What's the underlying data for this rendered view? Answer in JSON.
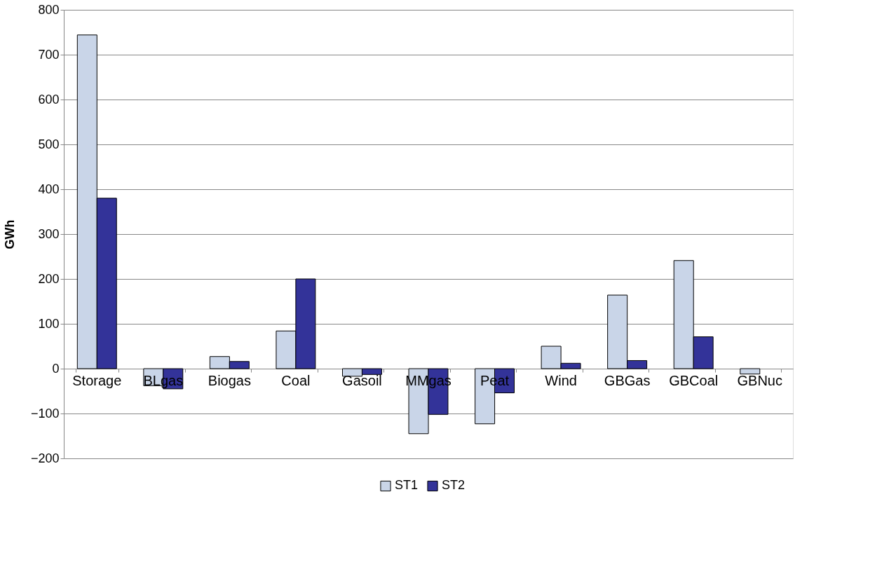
{
  "chart_data": {
    "type": "bar",
    "ylabel": "GWh",
    "categories": [
      "Storage",
      "BLgas",
      "Biogas",
      "Coal",
      "Gasoil",
      "MMgas",
      "Peat",
      "Wind",
      "GBGas",
      "GBCoal",
      "GBNuc"
    ],
    "series": [
      {
        "name": "ST1",
        "color": "#c9d5e8",
        "values": [
          744,
          -38,
          27,
          84,
          -17,
          -145,
          -123,
          50,
          164,
          241,
          -12
        ]
      },
      {
        "name": "ST2",
        "color": "#333399",
        "values": [
          380,
          -45,
          16,
          200,
          -13,
          -102,
          -54,
          12,
          18,
          71,
          null
        ]
      }
    ],
    "ylim": [
      -200,
      800
    ],
    "yticks": [
      -200,
      -100,
      0,
      100,
      200,
      300,
      400,
      500,
      600,
      700,
      800
    ],
    "grid": "y",
    "legend": "bottom"
  }
}
